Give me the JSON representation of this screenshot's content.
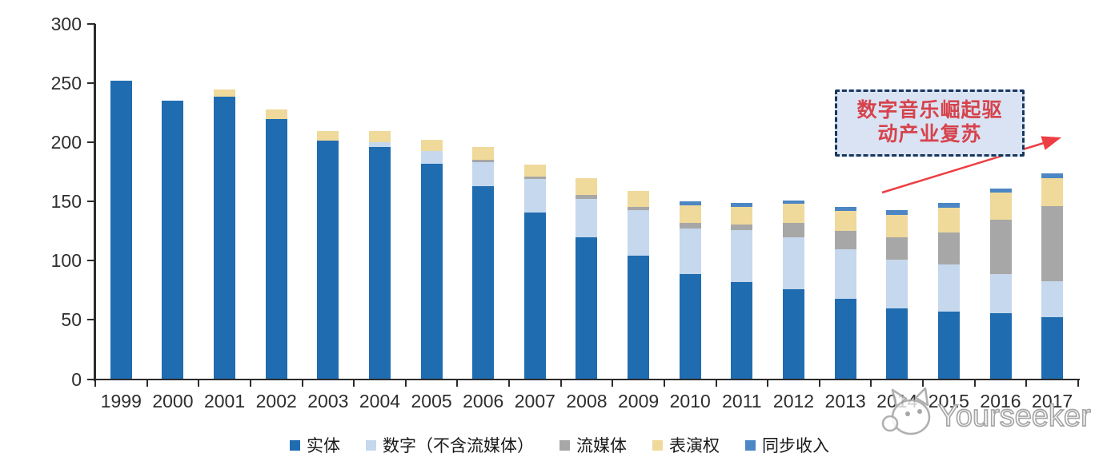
{
  "watermark": {
    "text": "Yourseeker",
    "logo": "cat-logo",
    "fill_color": "#ffffff",
    "outline_color": "#a6a6a6"
  },
  "annotation": {
    "line1": "数字音乐崛起驱",
    "line2": "动产业复苏",
    "text_color": "#d6434c",
    "box_fill": "#dae3f3",
    "box_border": "#17375e",
    "arrow_color": "#ed3e44"
  },
  "chart_data": {
    "type": "bar",
    "stacked": true,
    "categories": [
      "1999",
      "2000",
      "2001",
      "2002",
      "2003",
      "2004",
      "2005",
      "2006",
      "2007",
      "2008",
      "2009",
      "2010",
      "2011",
      "2012",
      "2013",
      "2014",
      "2015",
      "2016",
      "2017"
    ],
    "series": [
      {
        "name": "实体",
        "color": "#1f6cb1",
        "values": [
          252,
          235,
          238.5,
          219.5,
          201.5,
          196,
          182,
          163,
          141,
          120,
          104,
          89,
          82,
          76,
          68,
          60,
          57,
          55.5,
          52
        ]
      },
      {
        "name": "数字（不含流媒体）",
        "color": "#c5d8ed",
        "values": [
          0,
          0,
          0,
          0,
          0,
          4,
          11,
          20,
          28,
          32.5,
          38.5,
          38.5,
          44,
          44,
          42,
          41,
          40,
          33,
          30.5
        ]
      },
      {
        "name": "流媒体",
        "color": "#a7a7a7",
        "values": [
          0,
          0,
          0,
          0,
          0,
          0,
          0,
          2,
          2,
          3,
          3,
          4.5,
          4.5,
          12,
          15,
          19,
          27,
          46,
          63.5
        ]
      },
      {
        "name": "表演权",
        "color": "#efd99b",
        "values": [
          0,
          0,
          6,
          8,
          8,
          9.5,
          9,
          11,
          10.5,
          14,
          13.5,
          15,
          15,
          16,
          17,
          19,
          20.5,
          23,
          24
        ]
      },
      {
        "name": "同步收入",
        "color": "#4c86c4",
        "values": [
          0,
          0,
          0,
          0,
          0,
          0,
          0,
          0,
          0,
          0,
          0,
          3,
          3,
          3,
          3.5,
          3.5,
          4,
          3.5,
          3.5
        ]
      }
    ],
    "ylim": [
      0,
      300
    ],
    "yticks": [
      0,
      50,
      100,
      150,
      200,
      250,
      300
    ],
    "grid": false,
    "legend_position": "bottom",
    "axis_color": "#2b2b2b",
    "tick_label_color": "#2e2e2e"
  }
}
